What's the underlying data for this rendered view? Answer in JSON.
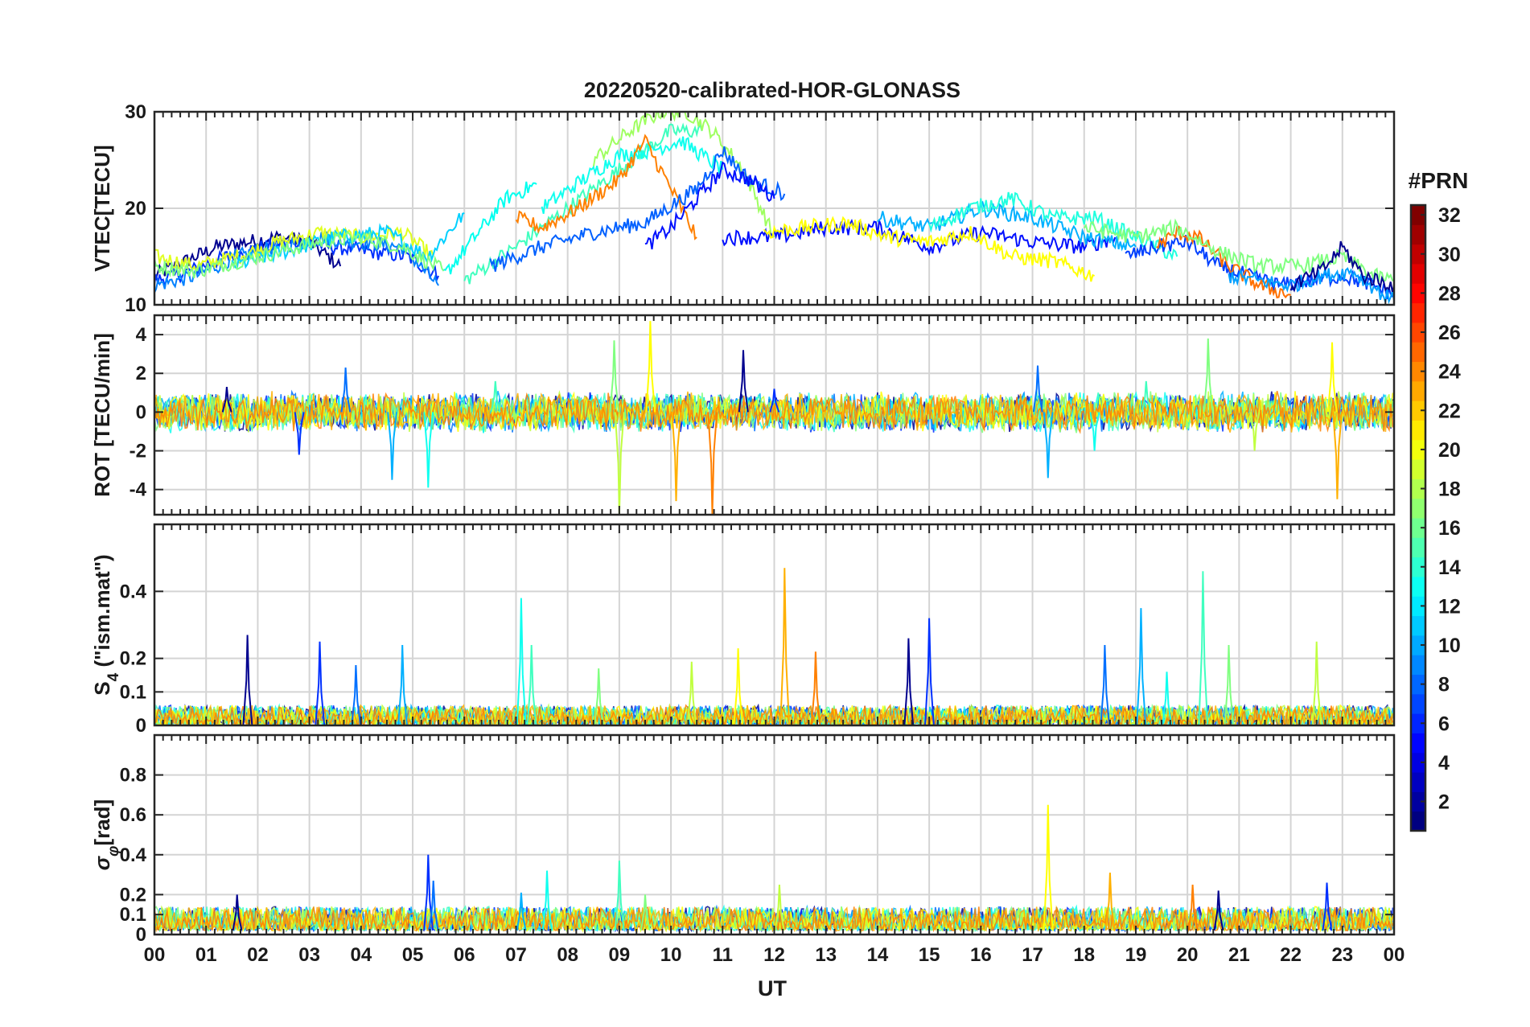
{
  "figure": {
    "title": "20220520-calibrated-HOR-GLONASS",
    "xlabel": "UT",
    "x_tick_labels": [
      "00",
      "01",
      "02",
      "03",
      "04",
      "05",
      "06",
      "07",
      "08",
      "09",
      "10",
      "11",
      "12",
      "13",
      "14",
      "15",
      "16",
      "17",
      "18",
      "19",
      "20",
      "21",
      "22",
      "23",
      "00"
    ]
  },
  "colorbar": {
    "title": "#PRN",
    "min": 1,
    "max": 32,
    "tick_labels": [
      "2",
      "4",
      "6",
      "8",
      "10",
      "12",
      "14",
      "16",
      "18",
      "20",
      "22",
      "24",
      "26",
      "28",
      "30",
      "32"
    ],
    "colormap": "jet"
  },
  "chart_data": [
    {
      "type": "line",
      "panel": "vtec",
      "ylabel": "VTEC[TECU]",
      "xlim": [
        0,
        24
      ],
      "ylim": [
        10,
        30
      ],
      "y_tick_labels": [
        "10",
        "20",
        "30"
      ],
      "grid": true,
      "series": [
        {
          "prn": 1,
          "color": "#00008f",
          "x": [
            0,
            0.6,
            1.2,
            1.8,
            2.4,
            3.0,
            3.6
          ],
          "y": [
            13,
            14.5,
            16,
            16.5,
            17,
            16.5,
            14
          ]
        },
        {
          "prn": 5,
          "color": "#0030ff",
          "x": [
            0,
            0.7,
            1.4,
            2.1,
            2.8,
            3.5,
            4.2,
            4.9,
            5.5
          ],
          "y": [
            12.5,
            13.5,
            15,
            16,
            16.5,
            16,
            15.5,
            15,
            13
          ]
        },
        {
          "prn": 9,
          "color": "#0080ff",
          "x": [
            0,
            0.8,
            1.6,
            2.4,
            3.2,
            4.0,
            4.8,
            5.5
          ],
          "y": [
            12,
            13,
            15,
            16,
            17,
            16.5,
            16,
            12
          ]
        },
        {
          "prn": 18,
          "color": "#e0ff1f",
          "x": [
            0,
            0.8,
            1.6,
            2.4,
            3.2,
            4.0,
            4.8,
            5.4
          ],
          "y": [
            15,
            14,
            15,
            16.5,
            17.5,
            17,
            17.5,
            15
          ]
        },
        {
          "prn": 12,
          "color": "#00d0ff",
          "x": [
            1.5,
            2.5,
            3.5,
            4.5,
            5.3,
            6.0
          ],
          "y": [
            14,
            15.5,
            17,
            17.5,
            15,
            19.5
          ]
        },
        {
          "prn": 16,
          "color": "#80ff80",
          "x": [
            0,
            0.8,
            1.6,
            2.4,
            3.2,
            4.0,
            4.8,
            5.6
          ],
          "y": [
            14,
            13.5,
            14.5,
            15.5,
            16.5,
            17,
            16,
            13.5
          ]
        },
        {
          "prn": 13,
          "color": "#00ffef",
          "x": [
            5.6,
            6.2,
            6.8,
            7.4
          ],
          "y": [
            13,
            17,
            21,
            22.5
          ]
        },
        {
          "prn": 15,
          "color": "#40ffbf",
          "x": [
            6.0,
            7.0,
            8.0,
            9.0,
            10.0,
            10.6
          ],
          "y": [
            12.5,
            16,
            20,
            24,
            28,
            28
          ]
        },
        {
          "prn": 17,
          "color": "#9fff60",
          "x": [
            8.5,
            9.2,
            9.8,
            10.3,
            10.8,
            11.4,
            12.0
          ],
          "y": [
            25,
            28,
            30,
            30,
            28,
            24,
            17
          ]
        },
        {
          "prn": 14,
          "color": "#10ffef",
          "x": [
            7.5,
            8.3,
            9.0,
            9.6,
            10.2,
            11.0
          ],
          "y": [
            20,
            23,
            25.5,
            26,
            27,
            24
          ]
        },
        {
          "prn": 23,
          "color": "#ff8000",
          "x": [
            7.0,
            7.5,
            8.2,
            9.0,
            9.5,
            10.0,
            10.5
          ],
          "y": [
            19,
            18,
            20,
            23,
            27,
            22,
            17
          ]
        },
        {
          "prn": 8,
          "color": "#0060ff",
          "x": [
            6.5,
            7.5,
            8.5,
            9.5,
            10.5,
            11.0,
            11.5,
            12.2
          ],
          "y": [
            14,
            16,
            17.5,
            18.5,
            22,
            26,
            23,
            21.5
          ]
        },
        {
          "prn": 3,
          "color": "#0010ff",
          "x": [
            9.5,
            10.0,
            10.5,
            11.0,
            11.5,
            12.0
          ],
          "y": [
            16,
            18,
            21,
            24,
            23,
            21
          ]
        },
        {
          "prn": 2,
          "color": "#000fff",
          "x": [
            11.0,
            12.0,
            13.0,
            14.0,
            15.0,
            16.0,
            17.0,
            18.0,
            18.6
          ],
          "y": [
            17,
            17,
            18,
            18,
            16,
            17.5,
            16.5,
            16,
            17
          ]
        },
        {
          "prn": 19,
          "color": "#ffff00",
          "x": [
            11.8,
            12.6,
            13.4,
            14.2,
            15.0,
            15.8,
            16.6,
            17.4,
            18.2
          ],
          "y": [
            17.5,
            18,
            18.5,
            17,
            16.5,
            17.5,
            15,
            14.5,
            13
          ]
        },
        {
          "prn": 11,
          "color": "#00b0ff",
          "x": [
            14.0,
            15.0,
            16.0,
            17.0,
            18.0,
            19.0
          ],
          "y": [
            19,
            18,
            20,
            19,
            17,
            16
          ]
        },
        {
          "prn": 14,
          "color": "#20ffdf",
          "x": [
            15.0,
            15.8,
            16.6,
            17.4,
            18.2,
            19.0,
            19.8
          ],
          "y": [
            18,
            20,
            21,
            19,
            19,
            17,
            15
          ]
        },
        {
          "prn": 6,
          "color": "#0040ff",
          "x": [
            18.8,
            19.4,
            20.0,
            20.6,
            21.2,
            21.8,
            22.4,
            23.0,
            23.6,
            24.0
          ],
          "y": [
            15,
            16,
            16.5,
            14,
            13,
            12,
            12.5,
            13,
            12,
            11
          ]
        },
        {
          "prn": 24,
          "color": "#ff7000",
          "x": [
            19.4,
            19.8,
            20.2,
            20.8,
            21.4,
            22.0
          ],
          "y": [
            16,
            17.5,
            17,
            14,
            12,
            11
          ]
        },
        {
          "prn": 16,
          "color": "#80ff80",
          "x": [
            18.0,
            19.0,
            19.8,
            20.6,
            21.4,
            22.2,
            23.0,
            23.6,
            24.0
          ],
          "y": [
            18,
            17,
            18,
            15.5,
            14,
            14,
            15,
            13,
            12.5
          ]
        },
        {
          "prn": 10,
          "color": "#00a0ff",
          "x": [
            20.8,
            21.4,
            22.0,
            22.6,
            23.2,
            23.8,
            24.0
          ],
          "y": [
            13,
            12.5,
            12,
            13,
            13.5,
            11,
            10.5
          ]
        },
        {
          "prn": 1,
          "color": "#00008f",
          "x": [
            22.0,
            22.6,
            23.0,
            23.4,
            24.0
          ],
          "y": [
            12,
            13.5,
            16,
            13,
            12
          ]
        }
      ]
    },
    {
      "type": "line",
      "panel": "rot",
      "ylabel": "ROT [TECU/min]",
      "xlim": [
        0,
        24
      ],
      "ylim": [
        -5.3,
        5
      ],
      "y_tick_labels": [
        "-4",
        "-2",
        "0",
        "2",
        "4"
      ],
      "grid": true,
      "noise_band": [
        -1,
        1
      ],
      "spikes": [
        {
          "x": 1.4,
          "y": 1.3
        },
        {
          "x": 2.8,
          "y": -2.2
        },
        {
          "x": 3.7,
          "y": 2.3
        },
        {
          "x": 4.6,
          "y": -3.5
        },
        {
          "x": 5.3,
          "y": -3.9
        },
        {
          "x": 6.6,
          "y": 1.6
        },
        {
          "x": 8.9,
          "y": 3.7
        },
        {
          "x": 9.0,
          "y": -5.3
        },
        {
          "x": 9.6,
          "y": 4.7
        },
        {
          "x": 10.1,
          "y": -4.6
        },
        {
          "x": 10.8,
          "y": -5.3
        },
        {
          "x": 11.4,
          "y": 3.2
        },
        {
          "x": 12.0,
          "y": 1.2
        },
        {
          "x": 17.1,
          "y": 2.4
        },
        {
          "x": 17.3,
          "y": -3.4
        },
        {
          "x": 18.2,
          "y": -2.0
        },
        {
          "x": 19.2,
          "y": 1.6
        },
        {
          "x": 20.4,
          "y": 3.8
        },
        {
          "x": 21.3,
          "y": -2.0
        },
        {
          "x": 22.8,
          "y": 3.6
        },
        {
          "x": 22.9,
          "y": -4.5
        }
      ]
    },
    {
      "type": "line",
      "panel": "s4",
      "ylabel": "S4 (\"ism.mat\")",
      "ylabel_parts": {
        "symbol": "S",
        "subscript": "4",
        "rest": " (\"ism.mat\")"
      },
      "xlim": [
        0,
        24
      ],
      "ylim": [
        0,
        0.6
      ],
      "y_tick_labels": [
        "0",
        "0.1",
        "0.2",
        "0.4"
      ],
      "y_tick_values": [
        0,
        0.1,
        0.2,
        0.4
      ],
      "grid": true,
      "noise_band": [
        0,
        0.05
      ],
      "spikes": [
        {
          "x": 1.8,
          "y": 0.27
        },
        {
          "x": 3.2,
          "y": 0.25
        },
        {
          "x": 3.9,
          "y": 0.18
        },
        {
          "x": 4.8,
          "y": 0.24
        },
        {
          "x": 7.1,
          "y": 0.38
        },
        {
          "x": 7.3,
          "y": 0.24
        },
        {
          "x": 8.6,
          "y": 0.17
        },
        {
          "x": 10.4,
          "y": 0.19
        },
        {
          "x": 11.3,
          "y": 0.23
        },
        {
          "x": 12.2,
          "y": 0.47
        },
        {
          "x": 12.8,
          "y": 0.22
        },
        {
          "x": 14.6,
          "y": 0.26
        },
        {
          "x": 15.0,
          "y": 0.32
        },
        {
          "x": 18.4,
          "y": 0.24
        },
        {
          "x": 19.1,
          "y": 0.35
        },
        {
          "x": 19.6,
          "y": 0.16
        },
        {
          "x": 20.3,
          "y": 0.46
        },
        {
          "x": 20.8,
          "y": 0.24
        },
        {
          "x": 22.5,
          "y": 0.25
        }
      ]
    },
    {
      "type": "line",
      "panel": "sigma_phi",
      "ylabel": "σφ[rad]",
      "ylabel_parts": {
        "symbol": "σ",
        "subscript": "φ",
        "rest": "[rad]"
      },
      "xlim": [
        0,
        24
      ],
      "ylim": [
        0,
        1
      ],
      "y_tick_labels": [
        "0",
        "0.1",
        "0.2",
        "0.4",
        "0.6",
        "0.8"
      ],
      "y_tick_values": [
        0,
        0.1,
        0.2,
        0.4,
        0.6,
        0.8
      ],
      "grid": true,
      "noise_band": [
        0.02,
        0.12
      ],
      "spikes": [
        {
          "x": 1.6,
          "y": 0.2
        },
        {
          "x": 5.3,
          "y": 0.4
        },
        {
          "x": 5.4,
          "y": 0.27
        },
        {
          "x": 7.1,
          "y": 0.21
        },
        {
          "x": 7.6,
          "y": 0.32
        },
        {
          "x": 9.0,
          "y": 0.37
        },
        {
          "x": 9.5,
          "y": 0.2
        },
        {
          "x": 12.1,
          "y": 0.25
        },
        {
          "x": 17.3,
          "y": 0.65
        },
        {
          "x": 18.5,
          "y": 0.31
        },
        {
          "x": 20.1,
          "y": 0.25
        },
        {
          "x": 20.6,
          "y": 0.22
        },
        {
          "x": 22.7,
          "y": 0.26
        }
      ]
    }
  ]
}
